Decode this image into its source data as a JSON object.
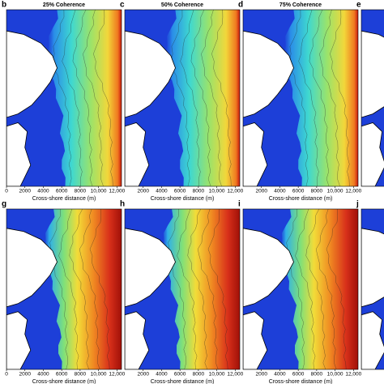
{
  "chart_data": [
    {
      "type": "heatmap",
      "panel": "b",
      "title": "25% Coherence",
      "xlabel": "Cross-shore distance (m)",
      "xlim": [
        0,
        12500
      ],
      "xticks": [
        0,
        2000,
        4000,
        6000,
        8000,
        {
          "value": 10000,
          "label": "10,000"
        },
        {
          "value": 12000,
          "label": "12,000"
        }
      ]
    },
    {
      "type": "heatmap",
      "panel": "c",
      "title": "50% Coherence",
      "xlabel": "Cross-shore distance (m)",
      "xlim": [
        0,
        12500
      ],
      "xticks": [
        2000,
        4000,
        6000,
        8000,
        {
          "value": 10000,
          "label": "10,000"
        },
        {
          "value": 12000,
          "label": "12,000"
        }
      ]
    },
    {
      "type": "heatmap",
      "panel": "d",
      "title": "75% Coherence",
      "xlabel": "Cross-shore distance (m)",
      "xlim": [
        0,
        12500
      ],
      "xticks": [
        2000,
        4000,
        6000,
        8000,
        {
          "value": 10000,
          "label": "10,000"
        },
        {
          "value": 12000,
          "label": "12,000"
        }
      ]
    },
    {
      "type": "heatmap",
      "panel": "e",
      "xlim": [
        0,
        12500
      ]
    },
    {
      "type": "heatmap",
      "panel": "g",
      "xlabel": "Cross-shore distance (m)",
      "xlim": [
        0,
        12500
      ],
      "xticks": [
        0,
        2000,
        4000,
        6000,
        8000,
        {
          "value": 10000,
          "label": "10,000"
        },
        {
          "value": 12000,
          "label": "12,000"
        }
      ]
    },
    {
      "type": "heatmap",
      "panel": "h",
      "xlabel": "Cross-shore distance (m)",
      "xlim": [
        0,
        12500
      ],
      "xticks": [
        2000,
        4000,
        6000,
        8000,
        {
          "value": 10000,
          "label": "10,000"
        },
        {
          "value": 12000,
          "label": "12,000"
        }
      ]
    },
    {
      "type": "heatmap",
      "panel": "i",
      "xlabel": "Cross-shore distance (m)",
      "xlim": [
        0,
        12500
      ],
      "xticks": [
        2000,
        4000,
        6000,
        8000,
        {
          "value": 10000,
          "label": "10,000"
        },
        {
          "value": 12000,
          "label": "12,000"
        }
      ]
    },
    {
      "type": "heatmap",
      "panel": "j",
      "xlim": [
        0,
        12500
      ]
    }
  ]
}
